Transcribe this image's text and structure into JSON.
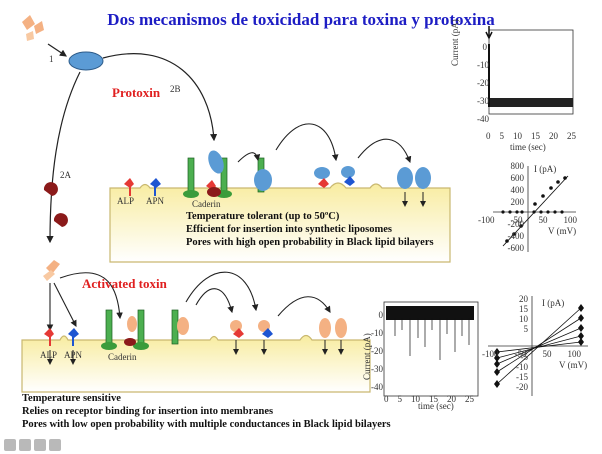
{
  "title": "Dos mecanismos de toxicidad para toxina y protoxina",
  "labels": {
    "protoxin": "Protoxin",
    "activated": "Activated toxin",
    "step1": "1",
    "step2b": "2B",
    "step2a": "2A",
    "alp": "ALP",
    "apn": "APN",
    "caderin": "Caderin"
  },
  "protoxin_notes": [
    "Temperature tolerant (up to 50ºC)",
    "Efficient for insertion into synthetic liposomes",
    "Pores with high open probability in Black lipid bilayers"
  ],
  "toxin_notes": [
    "Temperature sensitive",
    "Relies on receptor binding for insertion into membranes",
    "Pores with low open probability with multiple conductances in Black lipid bilayers"
  ],
  "trace_top": {
    "ylabel": "Current (pA)",
    "xlabel": "time (sec)",
    "yticks": [
      "0",
      "-10",
      "-20",
      "-30",
      "-40"
    ],
    "xticks": [
      "0",
      "5",
      "10",
      "15",
      "20",
      "25"
    ]
  },
  "iv_top": {
    "ylabel": "I (pA)",
    "xlabel": "V (mV)",
    "yticks": [
      "800",
      "600",
      "400",
      "200",
      "-200",
      "-400",
      "-600"
    ],
    "xticks": [
      "-100",
      "-50",
      "50",
      "100"
    ]
  },
  "trace_bottom": {
    "ylabel": "Current (pA)",
    "xlabel": "time (sec)",
    "yticks": [
      "0",
      "-10",
      "-20",
      "-30",
      "-40"
    ],
    "xticks": [
      "0",
      "5",
      "10",
      "15",
      "20",
      "25"
    ]
  },
  "iv_bottom": {
    "ylabel": "I (pA)",
    "xlabel": "V (mV)",
    "yticks": [
      "20",
      "15",
      "10",
      "5",
      "-5",
      "-10",
      "-15",
      "-20"
    ],
    "xticks": [
      "-100",
      "-50",
      "50",
      "100"
    ]
  }
}
